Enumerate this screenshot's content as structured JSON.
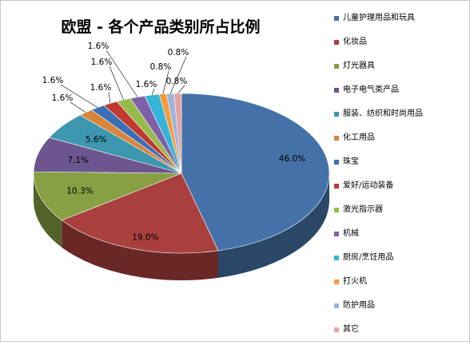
{
  "chart_data": {
    "type": "pie",
    "title": "欧盟 - 各个产品类别所占比例",
    "legend_position": "right",
    "slices": [
      {
        "name": "儿童护理用品和玩具",
        "value": 46.0,
        "label": "46.0%",
        "color": "#4472a8"
      },
      {
        "name": "化妆品",
        "value": 19.0,
        "label": "19.0%",
        "color": "#a9403d"
      },
      {
        "name": "灯光器具",
        "value": 10.3,
        "label": "10.3%",
        "color": "#86a043"
      },
      {
        "name": "电子电气类产品",
        "value": 7.1,
        "label": "7.1%",
        "color": "#6d5690"
      },
      {
        "name": "服装、纺织和时尚用品",
        "value": 5.6,
        "label": "5.6%",
        "color": "#3c97af"
      },
      {
        "name": "化工用品",
        "value": 1.6,
        "label": "1.6%",
        "color": "#d9843a"
      },
      {
        "name": "珠宝",
        "value": 1.6,
        "label": "1.6%",
        "color": "#3a6fb5"
      },
      {
        "name": "爱好/运动装备",
        "value": 1.6,
        "label": "1.6%",
        "color": "#c0392f"
      },
      {
        "name": "激光指示器",
        "value": 1.6,
        "label": "1.6%",
        "color": "#96bb4a"
      },
      {
        "name": "机械",
        "value": 1.6,
        "label": "1.6%",
        "color": "#8060a8"
      },
      {
        "name": "厨房/烹饪用品",
        "value": 1.6,
        "label": "1.6%",
        "color": "#35b4d8"
      },
      {
        "name": "打火机",
        "value": 0.8,
        "label": "0.8%",
        "color": "#f79a3a"
      },
      {
        "name": "防护用品",
        "value": 0.8,
        "label": "0.8%",
        "color": "#9db4dc"
      },
      {
        "name": "其它",
        "value": 0.8,
        "label": "0.8%",
        "color": "#e5a3a1"
      }
    ]
  }
}
